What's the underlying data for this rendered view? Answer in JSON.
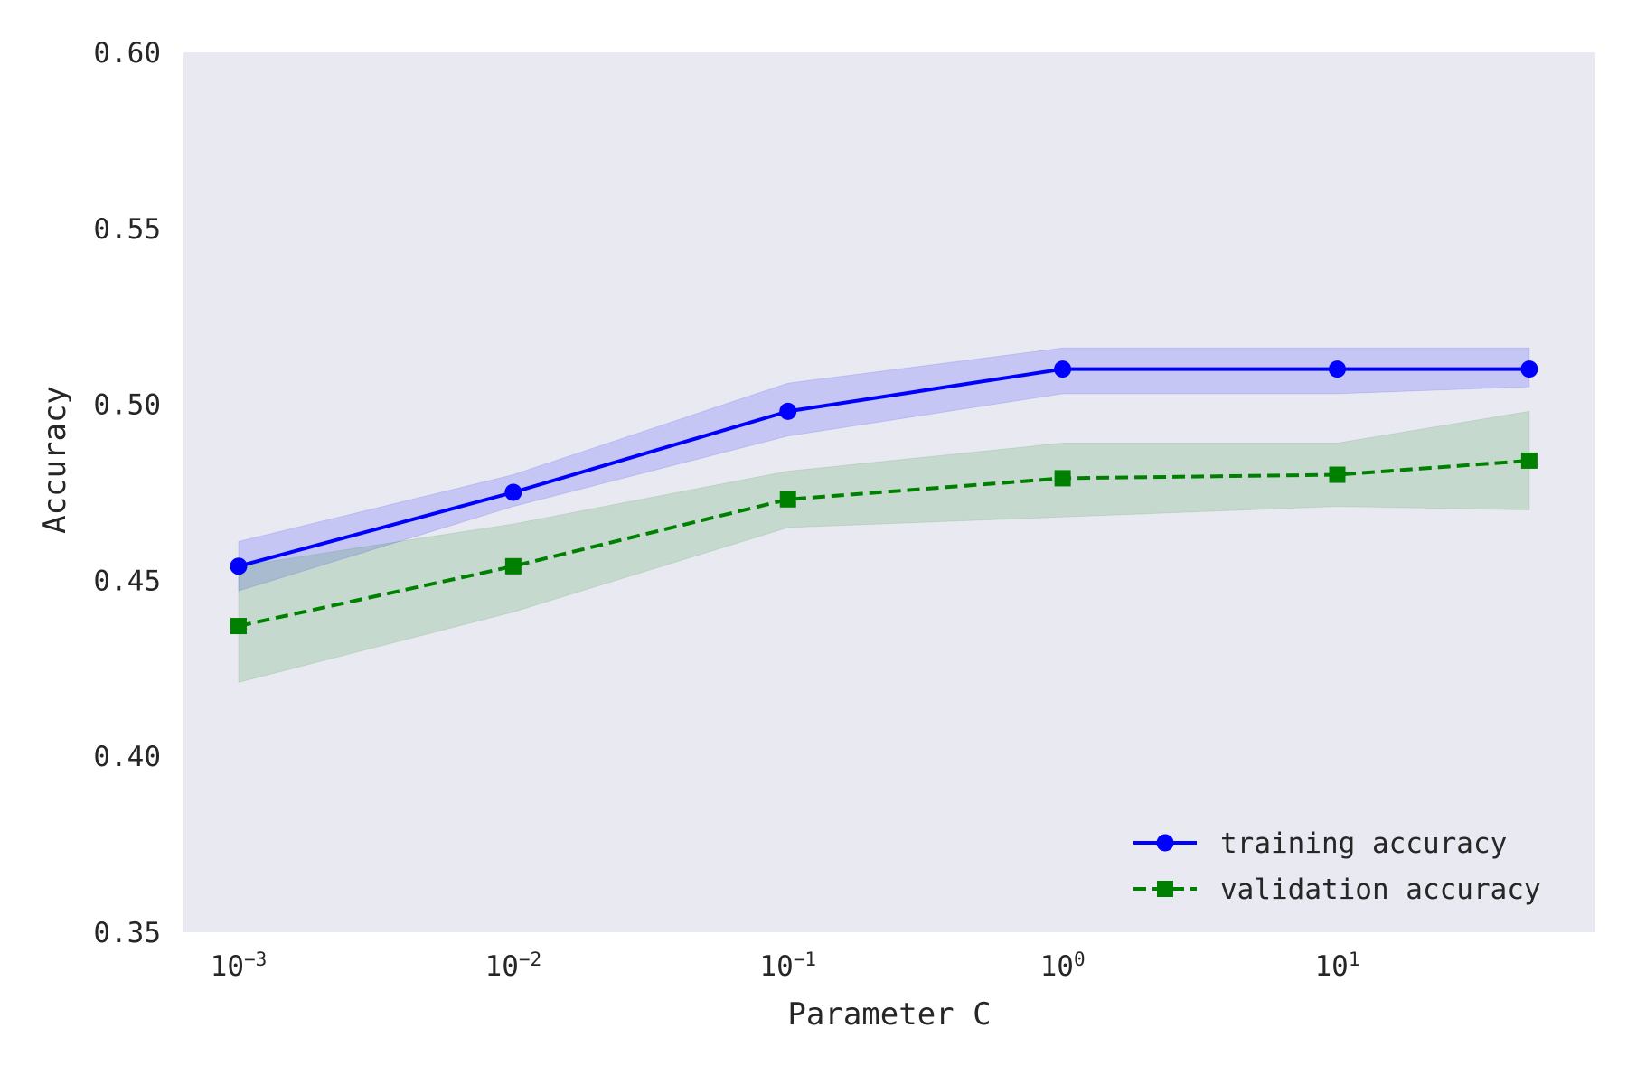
{
  "chart_data": {
    "type": "line",
    "title": "",
    "xlabel": "Parameter C",
    "ylabel": "Accuracy",
    "xscale": "log",
    "xlim": [
      0.00063,
      87
    ],
    "ylim": [
      0.35,
      0.6
    ],
    "x": [
      0.001,
      0.01,
      0.1,
      1,
      10,
      50
    ],
    "xticks": [
      {
        "value": 0.001,
        "base": "10",
        "exp": "−3"
      },
      {
        "value": 0.01,
        "base": "10",
        "exp": "−2"
      },
      {
        "value": 0.1,
        "base": "10",
        "exp": "−1"
      },
      {
        "value": 1,
        "base": "10",
        "exp": "0"
      },
      {
        "value": 10,
        "base": "10",
        "exp": "1"
      }
    ],
    "yticks": [
      {
        "value": 0.35,
        "label": "0.35"
      },
      {
        "value": 0.4,
        "label": "0.40"
      },
      {
        "value": 0.45,
        "label": "0.45"
      },
      {
        "value": 0.5,
        "label": "0.50"
      },
      {
        "value": 0.55,
        "label": "0.55"
      },
      {
        "value": 0.6,
        "label": "0.60"
      }
    ],
    "grid": false,
    "background": "#e9e9f2",
    "legend_position": "lower-right",
    "series": [
      {
        "name": "training accuracy",
        "color": "#0000ff",
        "line_style": "solid",
        "marker": "circle",
        "values": [
          0.454,
          0.475,
          0.498,
          0.51,
          0.51,
          0.51
        ],
        "upper": [
          0.461,
          0.48,
          0.506,
          0.516,
          0.516,
          0.516
        ],
        "lower": [
          0.447,
          0.471,
          0.491,
          0.503,
          0.503,
          0.505
        ],
        "band_color": "#0000ff",
        "band_opacity": 0.15
      },
      {
        "name": "validation accuracy",
        "color": "#008000",
        "line_style": "dashed",
        "marker": "square",
        "values": [
          0.437,
          0.454,
          0.473,
          0.479,
          0.48,
          0.484
        ],
        "upper": [
          0.454,
          0.466,
          0.481,
          0.489,
          0.489,
          0.498
        ],
        "lower": [
          0.421,
          0.441,
          0.465,
          0.468,
          0.471,
          0.47
        ],
        "band_color": "#008000",
        "band_opacity": 0.15
      }
    ]
  }
}
